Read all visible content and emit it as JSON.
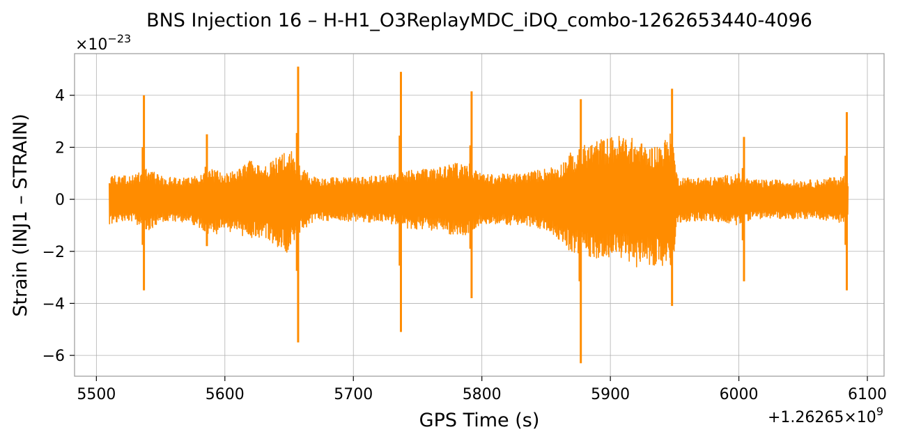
{
  "chart_data": {
    "type": "line",
    "title": "BNS Injection 16 – H-H1_O3ReplayMDC_iDQ_combo-1262653440-4096",
    "xlabel": "GPS Time (s)",
    "ylabel": "Strain (INJ1 – STRAIN)",
    "x_offset_label": "+1.26265×10",
    "x_offset_exponent": "9",
    "y_scale_label": "×10",
    "y_scale_exponent": "−23",
    "xlim": [
      5483,
      6113
    ],
    "ylim": [
      -6.8,
      5.6
    ],
    "x_ticks": [
      5500,
      5600,
      5700,
      5800,
      5900,
      6000,
      6100
    ],
    "x_tick_labels": [
      "5500",
      "5600",
      "5700",
      "5800",
      "5900",
      "6000",
      "6100"
    ],
    "y_ticks": [
      -6,
      -4,
      -2,
      0,
      2,
      4
    ],
    "y_tick_labels": [
      "−6",
      "−4",
      "−2",
      "0",
      "2",
      "4"
    ],
    "grid": true,
    "series_color": "#ff8c00",
    "x_range": [
      5510,
      6085
    ],
    "envelope": {
      "x": [
        5510,
        5520,
        5530,
        5540,
        5550,
        5560,
        5570,
        5580,
        5590,
        5600,
        5610,
        5620,
        5630,
        5640,
        5650,
        5660,
        5670,
        5700,
        5730,
        5740,
        5760,
        5780,
        5790,
        5800,
        5830,
        5850,
        5862,
        5868,
        5875,
        5880,
        5890,
        5900,
        5910,
        5920,
        5930,
        5940,
        5948,
        5952,
        5960,
        5980,
        6000,
        6010,
        6030,
        6060,
        6080,
        6085
      ],
      "upper": [
        0.95,
        0.9,
        0.95,
        1.2,
        0.9,
        0.85,
        0.85,
        0.9,
        1.2,
        0.95,
        1.2,
        1.5,
        1.2,
        1.6,
        2.0,
        1.2,
        0.85,
        0.85,
        0.95,
        1.1,
        1.2,
        1.4,
        1.4,
        0.95,
        1.0,
        1.2,
        1.4,
        1.8,
        1.7,
        2.1,
        2.3,
        2.4,
        2.5,
        2.3,
        2.0,
        2.2,
        2.6,
        0.9,
        0.85,
        0.85,
        1.0,
        0.75,
        0.75,
        0.75,
        0.9,
        0.9
      ],
      "lower": [
        -0.95,
        -0.9,
        -0.95,
        -1.2,
        -0.9,
        -0.85,
        -0.9,
        -1.1,
        -1.4,
        -1.2,
        -1.3,
        -1.6,
        -1.4,
        -1.8,
        -2.1,
        -1.2,
        -0.85,
        -0.85,
        -0.95,
        -1.1,
        -1.2,
        -1.4,
        -1.4,
        -0.95,
        -1.0,
        -1.2,
        -1.6,
        -2.0,
        -2.1,
        -2.2,
        -2.3,
        -2.2,
        -2.3,
        -2.6,
        -2.5,
        -2.6,
        -3.0,
        -0.9,
        -0.85,
        -0.85,
        -1.0,
        -0.75,
        -0.75,
        -0.75,
        -0.9,
        -0.9
      ]
    },
    "spikes": [
      {
        "x": 5537,
        "max": 4.0,
        "min": -3.5
      },
      {
        "x": 5586,
        "max": 2.5,
        "min": -1.8
      },
      {
        "x": 5657,
        "max": 5.1,
        "min": -5.5
      },
      {
        "x": 5737,
        "max": 4.9,
        "min": -5.1
      },
      {
        "x": 5792,
        "max": 4.15,
        "min": -3.8
      },
      {
        "x": 5877,
        "max": 3.85,
        "min": -6.3
      },
      {
        "x": 5948,
        "max": 4.25,
        "min": -4.1
      },
      {
        "x": 6004,
        "max": 2.4,
        "min": -3.15
      },
      {
        "x": 6084,
        "max": 3.35,
        "min": -3.5
      }
    ]
  }
}
